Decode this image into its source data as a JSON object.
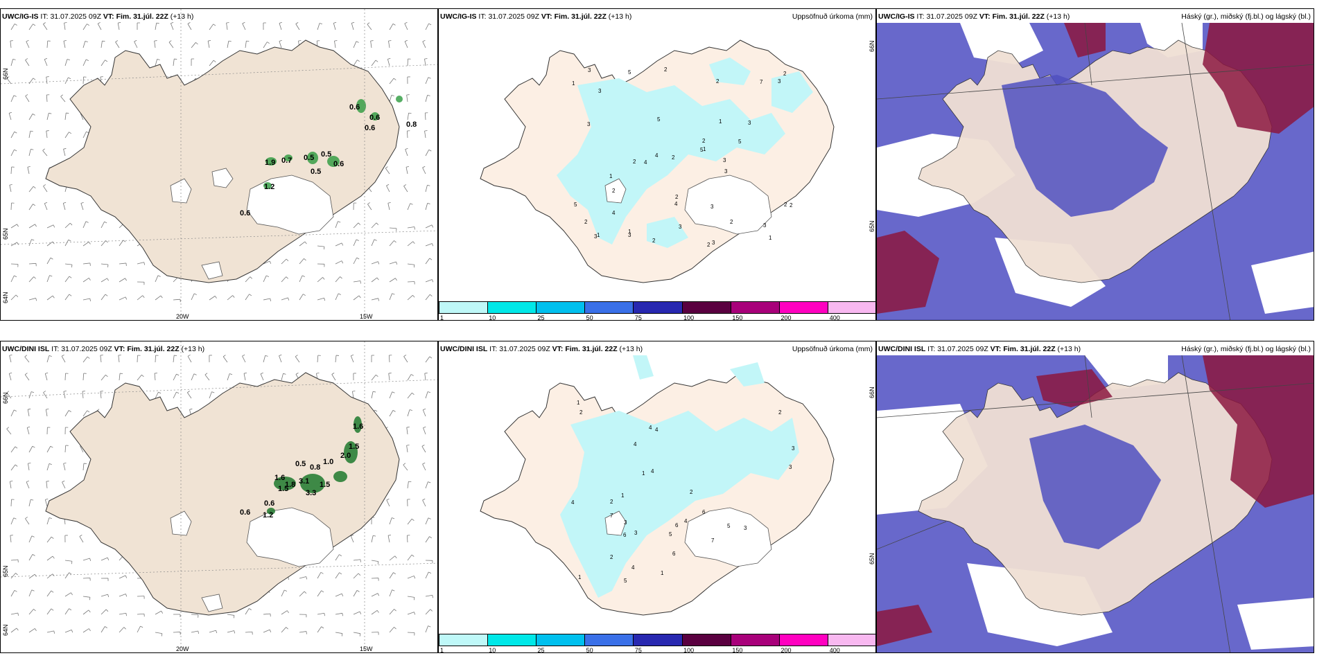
{
  "panels": [
    {
      "model": "UWC/IG-IS",
      "it_label": "IT:",
      "it": "31.07.2025 09Z",
      "vt_label": "VT:",
      "vt": "Fim. 31.júl. 22Z",
      "lead": "(+13 h)",
      "right": ""
    },
    {
      "model": "UWC/IG-IS",
      "it_label": "IT:",
      "it": "31.07.2025 09Z",
      "vt_label": "VT:",
      "vt": "Fim. 31.júl. 22Z",
      "lead": "(+13 h)",
      "right": "Uppsöfnuð úrkoma (mm)"
    },
    {
      "model": "UWC/IG-IS",
      "it_label": "IT:",
      "it": "31.07.2025 09Z",
      "vt_label": "VT:",
      "vt": "Fim. 31.júl. 22Z",
      "lead": "(+13 h)",
      "right": "Háský (gr.), miðský (fj.bl.) og lágský (bl.)"
    },
    {
      "model": "UWC/DINI ISL",
      "it_label": "IT:",
      "it": "31.07.2025 09Z",
      "vt_label": "VT:",
      "vt": "Fim. 31.júl. 22Z",
      "lead": "(+13 h)",
      "right": ""
    },
    {
      "model": "UWC/DINI ISL",
      "it_label": "IT:",
      "it": "31.07.2025 09Z",
      "vt_label": "VT:",
      "vt": "Fim. 31.júl. 22Z",
      "lead": "(+13 h)",
      "right": "Uppsöfnuð úrkoma (mm)"
    },
    {
      "model": "UWC/DINI ISL",
      "it_label": "IT:",
      "it": "31.07.2025 09Z",
      "vt_label": "VT:",
      "vt": "Fim. 31.júl. 22Z",
      "lead": "(+13 h)",
      "right": "Háský (gr.), miðský (fj.bl.) og lágský (bl.)"
    }
  ],
  "axes": {
    "lon": [
      "20W",
      "15W"
    ],
    "lat": [
      "66N",
      "65N",
      "64N"
    ]
  },
  "colorbar": {
    "ticks": [
      "1",
      "10",
      "25",
      "50",
      "75",
      "100",
      "150",
      "200",
      "400"
    ],
    "colors": [
      "#bff8f8",
      "#00e8e8",
      "#00c0ee",
      "#3a70e8",
      "#2828b0",
      "#5a0040",
      "#a8007a",
      "#ff00c0",
      "#f8b8f0"
    ]
  },
  "top_precip_values": [
    "0.6",
    "0.6",
    "0.6",
    "0.8",
    "1.9",
    "0.7",
    "0.5",
    "0.5",
    "0.5",
    "0.6",
    "1.2",
    "0.6"
  ],
  "bottom_precip_values": [
    "1.6",
    "1.5",
    "2.0",
    "1.0",
    "0.5",
    "0.8",
    "1.6",
    "1.8",
    "1.5",
    "3.1",
    "3.3",
    "1.5",
    "0.6",
    "0.6",
    "1.2"
  ],
  "top_accum_values": [
    "2",
    "2",
    "1",
    "2",
    "5",
    "3",
    "2",
    "1",
    "2",
    "5",
    "7",
    "3",
    "4",
    "4",
    "2",
    "5",
    "3",
    "3",
    "4",
    "1",
    "3",
    "2",
    "2",
    "3",
    "3",
    "1",
    "5",
    "2",
    "3",
    "3",
    "2",
    "3",
    "2",
    "3",
    "4",
    "3",
    "2",
    "2",
    "1",
    "3",
    "1",
    "5",
    "2",
    "1"
  ],
  "bottom_accum_values": [
    "2",
    "1",
    "4",
    "2",
    "3",
    "7",
    "4",
    "3",
    "1",
    "5",
    "6",
    "2",
    "5",
    "7",
    "6",
    "1",
    "5",
    "2",
    "4",
    "4",
    "3",
    "6",
    "4",
    "1",
    "2",
    "4",
    "3",
    "3",
    "1",
    "4",
    "6"
  ]
}
